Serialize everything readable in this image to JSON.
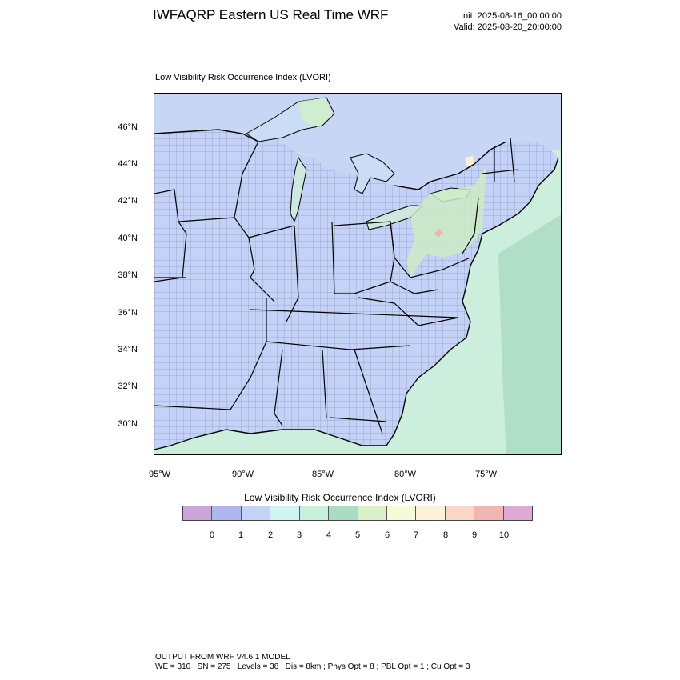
{
  "header": {
    "title": "IWFAQRP Eastern US Real Time WRF",
    "init": "Init: 2025-08-16_00:00:00",
    "valid": "Valid: 2025-08-20_20:00:00"
  },
  "map": {
    "subtitle": "Low Visibility Risk Occurrence Index   (LVORI)",
    "lat_labels": [
      "46°N",
      "44°N",
      "42°N",
      "40°N",
      "38°N",
      "36°N",
      "34°N",
      "32°N",
      "30°N"
    ],
    "lon_labels": [
      "95°W",
      "90°W",
      "85°W",
      "80°W",
      "75°W"
    ],
    "colors": {
      "land": "#c4d2f7",
      "ocean": "#cbeedd",
      "ocean_deep": "#a9d9c4",
      "lake": "#cbdcf6",
      "high_risk": "#ccecc6",
      "peak": "#f3b1b1"
    }
  },
  "legend": {
    "title": "Low Visibility Risk Occurrence Index  (LVORI)",
    "ticks": [
      "0",
      "1",
      "2",
      "3",
      "4",
      "5",
      "6",
      "7",
      "8",
      "9",
      "10"
    ],
    "colors": [
      "#cba6db",
      "#aeb6ee",
      "#c3d3f8",
      "#cff4f2",
      "#c8efdc",
      "#a9dbc5",
      "#d9f0c8",
      "#f5fbd7",
      "#fdf2d5",
      "#fbd5c5",
      "#f2b5b1",
      "#dfa9d3"
    ]
  },
  "footer": {
    "line1": "OUTPUT FROM WRF V4.6.1 MODEL",
    "line2": "WE = 310 ; SN = 275 ; Levels = 38 ; Dis = 8km ; Phys Opt = 8 ; PBL Opt = 1 ; Cu Opt = 3"
  }
}
